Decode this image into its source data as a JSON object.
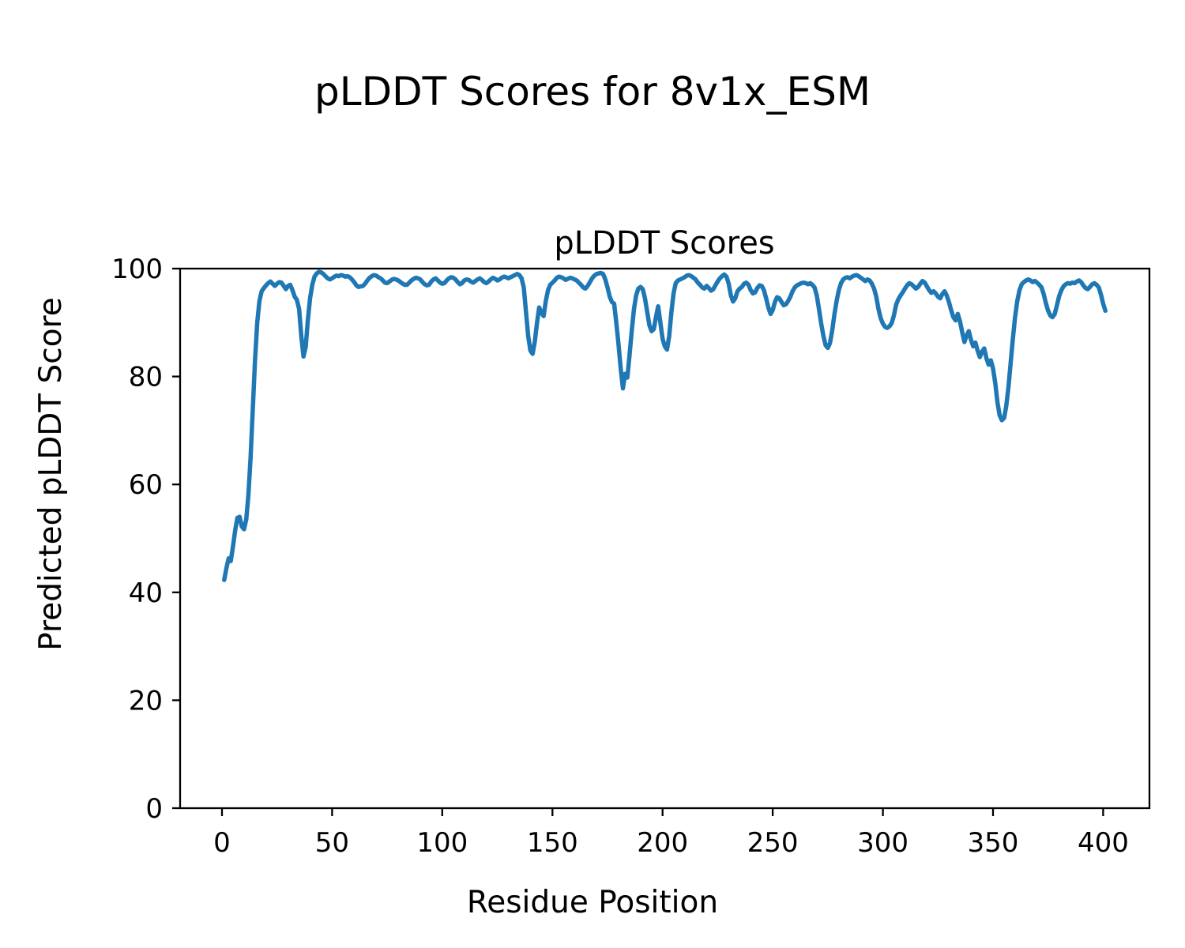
{
  "figure_title": "pLDDT Scores for 8v1x_ESM",
  "chart_data": {
    "type": "line",
    "title": "pLDDT Scores",
    "xlabel": "Residue Position",
    "ylabel": "Predicted pLDDT Score",
    "xlim": [
      -19,
      421
    ],
    "ylim": [
      0,
      100
    ],
    "xticks": [
      0,
      50,
      100,
      150,
      200,
      250,
      300,
      350,
      400
    ],
    "yticks": [
      0,
      20,
      40,
      60,
      80,
      100
    ],
    "grid": false,
    "legend": "none",
    "x_start": 1,
    "x_step": 1,
    "series": [
      {
        "name": "pLDDT",
        "color": "#1f77b4",
        "values": [
          42.3,
          44.5,
          46.3,
          45.8,
          48.5,
          51.5,
          53.8,
          54.0,
          52.2,
          51.7,
          53.5,
          58.0,
          65.0,
          74.0,
          83.0,
          90.0,
          94.0,
          95.8,
          96.4,
          96.9,
          97.3,
          97.6,
          97.2,
          96.8,
          97.2,
          97.5,
          97.4,
          96.8,
          96.2,
          96.8,
          97.0,
          96.0,
          94.8,
          94.2,
          92.5,
          87.5,
          83.7,
          85.5,
          90.5,
          94.5,
          97.0,
          98.5,
          99.1,
          99.4,
          99.3,
          99.0,
          98.6,
          98.2,
          98.0,
          98.2,
          98.5,
          98.7,
          98.6,
          98.8,
          98.7,
          98.5,
          98.6,
          98.4,
          98.0,
          97.5,
          96.9,
          96.6,
          96.7,
          96.8,
          97.2,
          97.8,
          98.3,
          98.6,
          98.8,
          98.7,
          98.4,
          98.2,
          97.8,
          97.4,
          97.3,
          97.6,
          97.9,
          98.1,
          98.0,
          97.8,
          97.5,
          97.2,
          97.0,
          97.0,
          97.4,
          97.8,
          98.1,
          98.3,
          98.2,
          98.0,
          97.5,
          97.1,
          96.9,
          97.0,
          97.6,
          98.0,
          98.2,
          97.8,
          97.4,
          97.2,
          97.3,
          97.8,
          98.2,
          98.4,
          98.3,
          98.0,
          97.5,
          97.1,
          97.3,
          97.8,
          98.0,
          97.9,
          97.6,
          97.4,
          97.7,
          98.0,
          98.2,
          97.9,
          97.5,
          97.3,
          97.6,
          98.0,
          98.3,
          98.1,
          97.8,
          98.0,
          98.3,
          98.5,
          98.4,
          98.2,
          98.4,
          98.6,
          98.8,
          99.0,
          98.8,
          98.2,
          96.5,
          92.0,
          87.5,
          84.8,
          84.2,
          86.5,
          90.0,
          92.8,
          91.8,
          91.2,
          94.0,
          96.0,
          97.0,
          97.4,
          97.8,
          98.3,
          98.5,
          98.4,
          98.2,
          97.9,
          98.1,
          98.3,
          98.2,
          98.0,
          97.8,
          97.4,
          97.0,
          96.5,
          96.3,
          96.8,
          97.5,
          98.2,
          98.7,
          99.0,
          99.1,
          99.2,
          99.0,
          98.0,
          96.5,
          94.8,
          93.8,
          93.5,
          90.0,
          86.0,
          81.5,
          77.8,
          80.5,
          79.8,
          84.0,
          88.5,
          92.5,
          95.0,
          96.3,
          96.6,
          96.2,
          94.5,
          92.0,
          89.5,
          88.4,
          88.8,
          91.0,
          93.0,
          90.0,
          87.0,
          85.6,
          85.0,
          87.5,
          92.0,
          95.5,
          97.3,
          97.8,
          98.0,
          98.2,
          98.4,
          98.7,
          98.8,
          98.6,
          98.3,
          98.0,
          97.4,
          97.0,
          96.5,
          96.3,
          96.8,
          96.4,
          95.9,
          96.2,
          96.9,
          97.6,
          98.2,
          98.6,
          98.9,
          98.5,
          97.2,
          95.0,
          93.9,
          94.5,
          95.8,
          96.3,
          96.6,
          97.2,
          97.4,
          97.0,
          96.0,
          95.4,
          95.6,
          96.4,
          96.9,
          96.8,
          96.0,
          94.5,
          92.8,
          91.6,
          92.3,
          93.8,
          94.7,
          94.5,
          93.8,
          93.2,
          93.4,
          94.0,
          94.8,
          95.8,
          96.5,
          96.9,
          97.1,
          97.3,
          97.4,
          97.3,
          97.1,
          97.3,
          97.0,
          96.5,
          95.0,
          92.5,
          89.8,
          87.5,
          85.8,
          85.3,
          86.2,
          88.5,
          91.5,
          94.0,
          96.0,
          97.3,
          98.0,
          98.3,
          98.4,
          98.2,
          98.5,
          98.7,
          98.8,
          98.6,
          98.3,
          98.0,
          97.7,
          98.0,
          97.8,
          97.2,
          96.3,
          94.8,
          92.5,
          90.8,
          89.8,
          89.2,
          89.0,
          89.3,
          89.9,
          91.3,
          93.3,
          94.3,
          95.0,
          95.6,
          96.3,
          96.9,
          97.3,
          97.1,
          96.7,
          96.3,
          96.6,
          97.2,
          97.7,
          97.4,
          96.7,
          96.0,
          95.5,
          95.8,
          95.4,
          94.8,
          94.5,
          95.3,
          95.8,
          95.0,
          93.8,
          92.3,
          91.0,
          90.4,
          91.6,
          90.2,
          88.2,
          86.4,
          87.6,
          88.4,
          86.8,
          85.6,
          86.3,
          84.8,
          83.6,
          84.6,
          85.2,
          83.4,
          82.2,
          83.0,
          81.5,
          78.8,
          75.2,
          72.8,
          71.9,
          72.3,
          74.5,
          78.0,
          82.5,
          87.0,
          91.0,
          94.0,
          96.0,
          97.1,
          97.5,
          97.8,
          98.0,
          97.8,
          97.5,
          97.7,
          97.4,
          97.0,
          96.5,
          95.3,
          93.6,
          92.2,
          91.3,
          91.0,
          91.6,
          93.2,
          94.9,
          96.0,
          96.7,
          97.1,
          97.3,
          97.2,
          97.4,
          97.3,
          97.6,
          97.8,
          97.5,
          96.9,
          96.4,
          96.2,
          96.6,
          97.1,
          97.3,
          97.0,
          96.5,
          95.2,
          93.5,
          92.2
        ]
      }
    ]
  }
}
